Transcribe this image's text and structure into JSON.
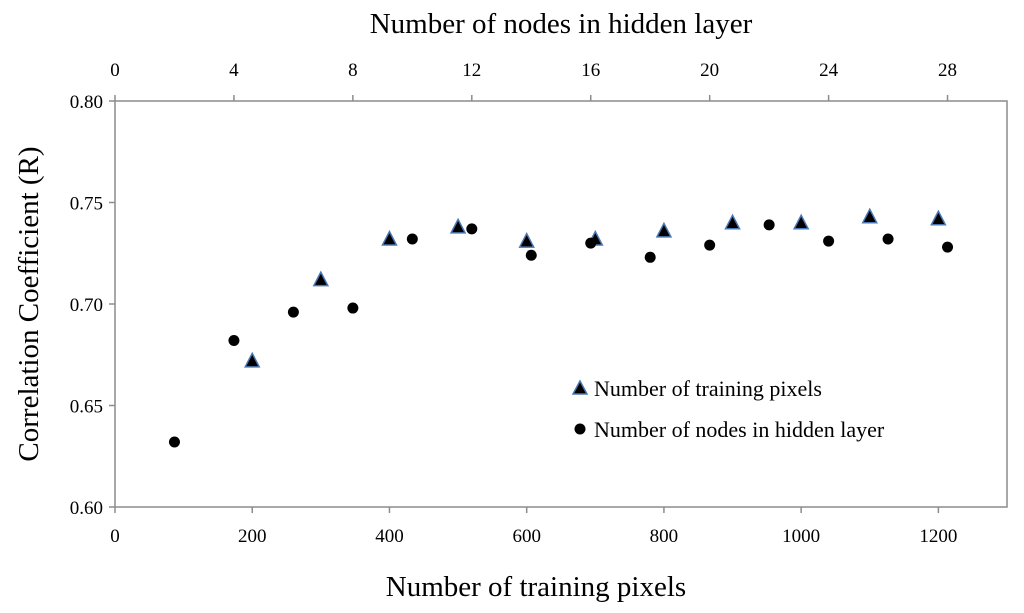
{
  "chart_data": {
    "type": "scatter",
    "xlabel": "Number of training pixels",
    "x2label": "Number of nodes in hidden layer",
    "ylabel": "Correlation Coefficient (R)",
    "xlim": [
      0,
      1300
    ],
    "x2lim": [
      0,
      30
    ],
    "ylim": [
      0.6,
      0.8
    ],
    "xticks": [
      0,
      200,
      400,
      600,
      800,
      1000,
      1200
    ],
    "x2ticks": [
      0,
      4,
      8,
      12,
      16,
      20,
      24,
      28
    ],
    "yticks": [
      0.6,
      0.65,
      0.7,
      0.75,
      0.8
    ],
    "ytick_labels": [
      "0.60",
      "0.65",
      "0.70",
      "0.75",
      "0.80"
    ],
    "grid": false,
    "legend_position": "bottom-right",
    "series": [
      {
        "name": "Number of training pixels",
        "axis": "bottom",
        "marker": "triangle",
        "color": "#000000",
        "edge_color": "#4a78b5",
        "points": [
          {
            "x": 200,
            "y": 0.672
          },
          {
            "x": 300,
            "y": 0.712
          },
          {
            "x": 400,
            "y": 0.732
          },
          {
            "x": 500,
            "y": 0.738
          },
          {
            "x": 600,
            "y": 0.731
          },
          {
            "x": 700,
            "y": 0.732
          },
          {
            "x": 800,
            "y": 0.736
          },
          {
            "x": 900,
            "y": 0.74
          },
          {
            "x": 1000,
            "y": 0.74
          },
          {
            "x": 1100,
            "y": 0.743
          },
          {
            "x": 1200,
            "y": 0.742
          }
        ]
      },
      {
        "name": "Number of nodes in hidden layer",
        "axis": "top",
        "marker": "circle",
        "color": "#000000",
        "points": [
          {
            "x": 2,
            "y": 0.632
          },
          {
            "x": 4,
            "y": 0.682
          },
          {
            "x": 6,
            "y": 0.696
          },
          {
            "x": 8,
            "y": 0.698
          },
          {
            "x": 10,
            "y": 0.732
          },
          {
            "x": 12,
            "y": 0.737
          },
          {
            "x": 14,
            "y": 0.724
          },
          {
            "x": 16,
            "y": 0.73
          },
          {
            "x": 18,
            "y": 0.723
          },
          {
            "x": 20,
            "y": 0.729
          },
          {
            "x": 22,
            "y": 0.739
          },
          {
            "x": 24,
            "y": 0.731
          },
          {
            "x": 26,
            "y": 0.732
          },
          {
            "x": 28,
            "y": 0.728
          }
        ]
      }
    ]
  }
}
